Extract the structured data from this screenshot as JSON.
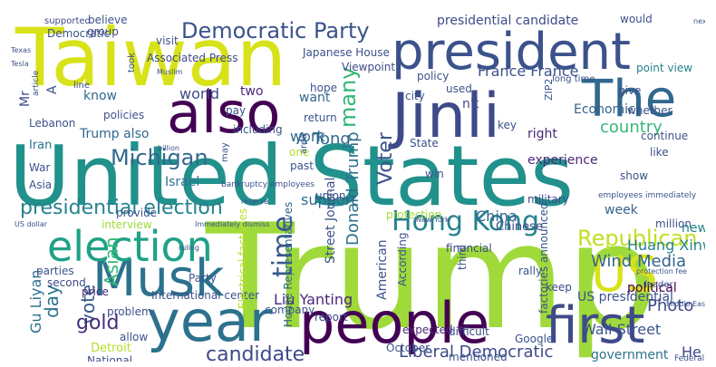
{
  "wordcloud": {
    "words": [
      {
        "text": "Trump",
        "color": "#9fda3a"
      },
      {
        "text": "United States",
        "color": "#21918c"
      },
      {
        "text": "Taiwan",
        "color": "#d8e219"
      },
      {
        "text": "president",
        "color": "#3b528b"
      },
      {
        "text": "Jinli",
        "color": "#3e4a89"
      },
      {
        "text": "The",
        "color": "#31688e"
      },
      {
        "text": "people",
        "color": "#440154"
      },
      {
        "text": "year",
        "color": "#2c728e"
      },
      {
        "text": "also",
        "color": "#440154"
      },
      {
        "text": "Musk",
        "color": "#2c728e"
      },
      {
        "text": "first",
        "color": "#3e4a89"
      },
      {
        "text": "US",
        "color": "#d8e219"
      },
      {
        "text": "election",
        "color": "#1fa187"
      },
      {
        "text": "Hong Kong",
        "color": "#26828e"
      },
      {
        "text": "Democratic Party",
        "color": "#3b528b"
      },
      {
        "text": "Republican",
        "color": "#c2df23"
      },
      {
        "text": "Michigan",
        "color": "#31688e"
      },
      {
        "text": "presidential election",
        "color": "#26828e"
      },
      {
        "text": "time",
        "color": "#38588c"
      },
      {
        "text": "many",
        "color": "#35b779"
      },
      {
        "text": "Voter",
        "color": "#3b528b"
      },
      {
        "text": "Donald Trump",
        "color": "#2c728e"
      },
      {
        "text": "A Tong",
        "color": "#31688e"
      },
      {
        "text": "country",
        "color": "#35b779"
      },
      {
        "text": "Wind Media",
        "color": "#33638d"
      },
      {
        "text": "vote",
        "color": "#38588c"
      },
      {
        "text": "gold",
        "color": "#472d7b"
      },
      {
        "text": "candidate",
        "color": "#3e4a89"
      },
      {
        "text": "day",
        "color": "#2c728e"
      },
      {
        "text": "Asian",
        "color": "#35b779"
      },
      {
        "text": "Liberal Democratic",
        "color": "#3e4a89"
      },
      {
        "text": "Photo",
        "color": "#3e4a89"
      },
      {
        "text": "Wall Street",
        "color": "#3b528b"
      },
      {
        "text": "Liu Yanting",
        "color": "#482878"
      },
      {
        "text": "Gu Liyan",
        "color": "#2c728e"
      },
      {
        "text": "China",
        "color": "#31688e"
      },
      {
        "text": "France France",
        "color": "#3b528b"
      },
      {
        "text": "Huang Xinwei",
        "color": "#26828e"
      },
      {
        "text": "presidential candidate",
        "color": "#3e4a89"
      },
      {
        "text": "support",
        "color": "#31688e"
      },
      {
        "text": "work",
        "color": "#31688e"
      },
      {
        "text": "world",
        "color": "#3e4a89"
      },
      {
        "text": "know",
        "color": "#31688e"
      },
      {
        "text": "want",
        "color": "#31688e"
      },
      {
        "text": "two",
        "color": "#482878"
      },
      {
        "text": "Trump also",
        "color": "#31688e"
      },
      {
        "text": "Street Journal",
        "color": "#3b528b"
      },
      {
        "text": "American",
        "color": "#3b528b"
      },
      {
        "text": "He",
        "color": "#3e4a89"
      },
      {
        "text": "week",
        "color": "#33638d"
      },
      {
        "text": "US presidential",
        "color": "#3b528b"
      },
      {
        "text": "political",
        "color": "#440154"
      },
      {
        "text": "Economic",
        "color": "#33638d"
      },
      {
        "text": "government",
        "color": "#2c728e"
      },
      {
        "text": "new",
        "color": "#26828e"
      },
      {
        "text": "right",
        "color": "#482878"
      },
      {
        "text": "experience",
        "color": "#482878"
      },
      {
        "text": "military",
        "color": "#3e4a89"
      },
      {
        "text": "Israel",
        "color": "#2c728e"
      },
      {
        "text": "Detroit",
        "color": "#b5de2b"
      },
      {
        "text": "Democratic",
        "color": "#3b528b"
      },
      {
        "text": "House Representatives",
        "color": "#31688e"
      },
      {
        "text": "International center",
        "color": "#3b528b"
      },
      {
        "text": "Mr",
        "color": "#3e4a89"
      },
      {
        "text": "A",
        "color": "#3b528b"
      },
      {
        "text": "Iran",
        "color": "#2c728e"
      },
      {
        "text": "Lebanon",
        "color": "#3b528b"
      },
      {
        "text": "policies",
        "color": "#3b528b"
      },
      {
        "text": "provide",
        "color": "#3b528b"
      },
      {
        "text": "Chinese",
        "color": "#3e4a89"
      },
      {
        "text": "factories announced",
        "color": "#3b528b"
      },
      {
        "text": "keep",
        "color": "#3e4a89"
      },
      {
        "text": "third",
        "color": "#3b528b"
      },
      {
        "text": "million",
        "color": "#3b528b"
      },
      {
        "text": "mentioned",
        "color": "#3b528b"
      },
      {
        "text": "expected",
        "color": "#482878"
      },
      {
        "text": "difficult",
        "color": "#3e4a89"
      },
      {
        "text": "report",
        "color": "#3e4a89"
      },
      {
        "text": "company",
        "color": "#3b528b"
      },
      {
        "text": "price",
        "color": "#482878"
      },
      {
        "text": "parties",
        "color": "#3b528b"
      },
      {
        "text": "second",
        "color": "#3e4a89"
      },
      {
        "text": "problem",
        "color": "#3b528b"
      },
      {
        "text": "allow",
        "color": "#3b528b"
      },
      {
        "text": "National",
        "color": "#3e4a89"
      },
      {
        "text": "Party",
        "color": "#3b528b"
      },
      {
        "text": "Google",
        "color": "#3b528b"
      },
      {
        "text": "rally",
        "color": "#3b528b"
      },
      {
        "text": "financial",
        "color": "#3e4a89"
      },
      {
        "text": "According",
        "color": "#3b528b"
      },
      {
        "text": "October",
        "color": "#3b528b"
      },
      {
        "text": "Associated Press",
        "color": "#3e4a89"
      },
      {
        "text": "Japanese House",
        "color": "#3b528b"
      },
      {
        "text": "Viewpoint",
        "color": "#3e4a89"
      },
      {
        "text": "believe",
        "color": "#3b528b"
      },
      {
        "text": "group",
        "color": "#3e4a89"
      },
      {
        "text": "visit",
        "color": "#3b528b"
      },
      {
        "text": "article",
        "color": "#3b528b"
      },
      {
        "text": "took",
        "color": "#3b528b"
      },
      {
        "text": "supported",
        "color": "#3e4a89"
      },
      {
        "text": "pay",
        "color": "#3b528b"
      },
      {
        "text": "hope",
        "color": "#3b528b"
      },
      {
        "text": "return",
        "color": "#3b528b"
      },
      {
        "text": "including",
        "color": "#3b528b"
      },
      {
        "text": "point view",
        "color": "#26828e"
      },
      {
        "text": "whether",
        "color": "#3b528b"
      },
      {
        "text": "give",
        "color": "#3b528b"
      },
      {
        "text": "continue",
        "color": "#3b528b"
      },
      {
        "text": "like",
        "color": "#3b528b"
      },
      {
        "text": "show",
        "color": "#3b528b"
      },
      {
        "text": "would",
        "color": "#3b528b"
      },
      {
        "text": "policy",
        "color": "#3b528b"
      },
      {
        "text": "city",
        "color": "#3b528b"
      },
      {
        "text": "used",
        "color": "#3b528b"
      },
      {
        "text": "n't",
        "color": "#3e4a89"
      },
      {
        "text": "key",
        "color": "#3b528b"
      },
      {
        "text": "State",
        "color": "#3b528b"
      },
      {
        "text": "win",
        "color": "#3b528b"
      },
      {
        "text": "one",
        "color": "#b5de2b"
      },
      {
        "text": "past",
        "color": "#3b528b"
      },
      {
        "text": "union",
        "color": "#3b528b"
      },
      {
        "text": "War",
        "color": "#3b528b"
      },
      {
        "text": "Asia",
        "color": "#3b528b"
      },
      {
        "text": "line",
        "color": "#3b528b"
      },
      {
        "text": "Texas",
        "color": "#3b528b"
      },
      {
        "text": "may",
        "color": "#3b528b"
      },
      {
        "text": "area",
        "color": "#3b528b"
      },
      {
        "text": "Electrical factories",
        "color": "#b5de2b"
      },
      {
        "text": "ZIP2",
        "color": "#3b528b"
      },
      {
        "text": "long time",
        "color": "#3b528b"
      },
      {
        "text": "employees immediately",
        "color": "#3b528b"
      },
      {
        "text": "protection fee",
        "color": "#3b528b"
      },
      {
        "text": "leader",
        "color": "#3b528b"
      },
      {
        "text": "Middle East",
        "color": "#3b528b"
      },
      {
        "text": "next",
        "color": "#3b528b"
      },
      {
        "text": "US dollar",
        "color": "#3b528b"
      },
      {
        "text": "interview",
        "color": "#9fda3a"
      },
      {
        "text": "protection",
        "color": "#9fda3a"
      },
      {
        "text": "New York",
        "color": "#3b528b"
      },
      {
        "text": "bankruptcy employees",
        "color": "#3b528b"
      },
      {
        "text": "Immediately dismiss",
        "color": "#3b528b"
      },
      {
        "text": "Federal",
        "color": "#3b528b"
      },
      {
        "text": "Tesla",
        "color": "#3b528b"
      },
      {
        "text": "ruling",
        "color": "#3b528b"
      },
      {
        "text": "Muslim",
        "color": "#3b528b"
      },
      {
        "text": "billion",
        "color": "#3b528b"
      },
      {
        "text": "reserve",
        "color": "#3b528b"
      }
    ]
  }
}
